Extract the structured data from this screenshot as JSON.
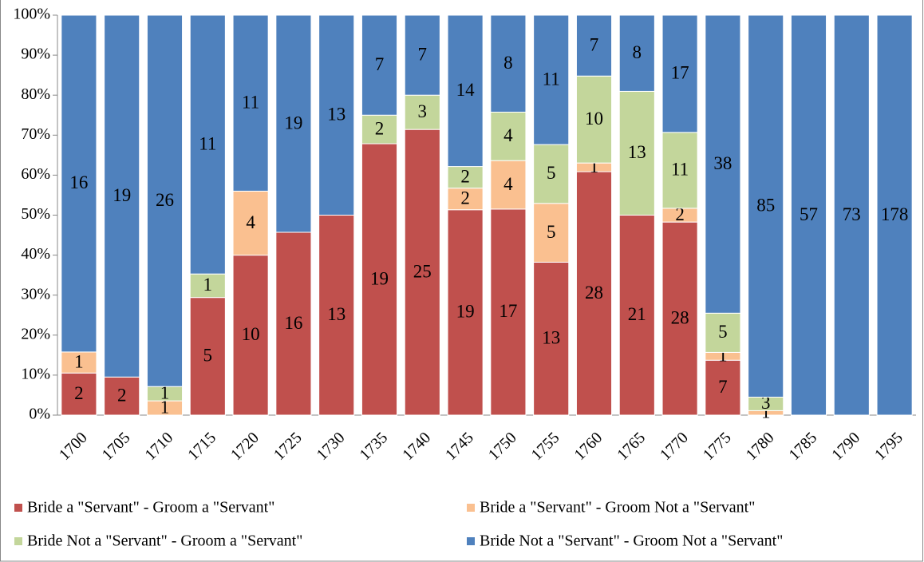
{
  "chart_data": {
    "type": "bar",
    "stacking": "percent",
    "categories": [
      "1700",
      "1705",
      "1710",
      "1715",
      "1720",
      "1725",
      "1730",
      "1735",
      "1740",
      "1745",
      "1750",
      "1755",
      "1760",
      "1765",
      "1770",
      "1775",
      "1780",
      "1785",
      "1790",
      "1795"
    ],
    "series": [
      {
        "name": "Bride a \"Servant\" - Groom a \"Servant\"",
        "color": "#c0504d",
        "values": [
          2,
          2,
          0,
          5,
          10,
          16,
          13,
          19,
          25,
          19,
          17,
          13,
          28,
          21,
          28,
          7,
          0,
          0,
          0,
          0
        ]
      },
      {
        "name": "Bride a \"Servant\" - Groom Not a \"Servant\"",
        "color": "#fac090",
        "values": [
          1,
          0,
          1,
          0,
          4,
          0,
          0,
          0,
          0,
          2,
          4,
          5,
          1,
          0,
          2,
          1,
          1,
          0,
          0,
          0
        ]
      },
      {
        "name": "Bride Not a \"Servant\" - Groom a \"Servant\"",
        "color": "#c3d69b",
        "values": [
          0,
          0,
          1,
          1,
          0,
          0,
          0,
          2,
          3,
          2,
          4,
          5,
          10,
          13,
          11,
          5,
          3,
          0,
          0,
          0
        ]
      },
      {
        "name": "Bride Not a \"Servant\" - Groom Not a \"Servant\"",
        "color": "#4f81bd",
        "values": [
          16,
          19,
          26,
          11,
          11,
          19,
          13,
          7,
          7,
          14,
          8,
          11,
          7,
          8,
          17,
          38,
          85,
          57,
          73,
          178
        ]
      }
    ],
    "ylim": [
      0,
      100
    ],
    "yticks": [
      {
        "value": 0,
        "label": "0%"
      },
      {
        "value": 10,
        "label": "10%"
      },
      {
        "value": 20,
        "label": "20%"
      },
      {
        "value": 30,
        "label": "30%"
      },
      {
        "value": 40,
        "label": "40%"
      },
      {
        "value": 50,
        "label": "50%"
      },
      {
        "value": 60,
        "label": "60%"
      },
      {
        "value": 70,
        "label": "70%"
      },
      {
        "value": 80,
        "label": "80%"
      },
      {
        "value": 90,
        "label": "90%"
      },
      {
        "value": 100,
        "label": "100%"
      }
    ],
    "legend": "bottom"
  }
}
